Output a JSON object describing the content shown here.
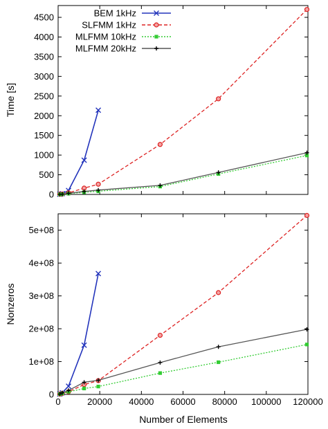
{
  "figure": {
    "xlabel": "Number of Elements"
  },
  "chart_data": [
    {
      "type": "line",
      "title": "",
      "xlabel": "",
      "ylabel": "Time [s]",
      "xlim": [
        0,
        120000
      ],
      "ylim": [
        0,
        4800
      ],
      "xticks": [
        0,
        20000,
        40000,
        60000,
        80000,
        100000,
        120000
      ],
      "yticks": [
        0,
        500,
        1000,
        1500,
        2000,
        2500,
        3000,
        3500,
        4000,
        4500
      ],
      "ytick_labels": [
        "0",
        "500",
        "1000",
        "1500",
        "2000",
        "2500",
        "3000",
        "3500",
        "4000",
        "4500"
      ],
      "grid": false,
      "legend": {
        "placement": "top-left",
        "entries": [
          "BEM 1kHz",
          "SLFMM 1kHz",
          "MLFMM 10kHz",
          "MLFMM 20kHz"
        ]
      },
      "series": [
        {
          "name": "BEM 1kHz",
          "color": "#2233bb",
          "marker": "x",
          "dash": "solid",
          "x": [
            800,
            2000,
            5000,
            12500,
            19300
          ],
          "y": [
            5,
            20,
            100,
            870,
            2140
          ]
        },
        {
          "name": "SLFMM 1kHz",
          "color": "#dd2222",
          "marker": "circle",
          "dash": "dashed",
          "x": [
            800,
            2000,
            5000,
            12500,
            19300,
            49000,
            77000,
            119500
          ],
          "y": [
            5,
            10,
            40,
            160,
            260,
            1270,
            2430,
            4700
          ]
        },
        {
          "name": "MLFMM 10kHz",
          "color": "#33cc33",
          "marker": "square",
          "dash": "dotted",
          "x": [
            800,
            2000,
            5000,
            12500,
            19300,
            49000,
            77000,
            119500
          ],
          "y": [
            2,
            5,
            20,
            55,
            80,
            200,
            520,
            990
          ]
        },
        {
          "name": "MLFMM 20kHz",
          "color": "#555555",
          "marker": "plus",
          "dash": "solid",
          "x": [
            800,
            2000,
            5000,
            12500,
            19300,
            49000,
            77000,
            119500
          ],
          "y": [
            3,
            8,
            30,
            75,
            110,
            230,
            560,
            1060
          ]
        }
      ]
    },
    {
      "type": "line",
      "title": "",
      "xlabel": "Number of Elements",
      "ylabel": "Nonzeros",
      "xlim": [
        0,
        120000
      ],
      "ylim": [
        0,
        550000000
      ],
      "xticks": [
        0,
        20000,
        40000,
        60000,
        80000,
        100000,
        120000
      ],
      "xtick_labels": [
        "0",
        "20000",
        "40000",
        "60000",
        "80000",
        "100000",
        "120000"
      ],
      "yticks": [
        0,
        100000000,
        200000000,
        300000000,
        400000000,
        500000000
      ],
      "ytick_labels": [
        "0",
        "1e+08",
        "2e+08",
        "3e+08",
        "4e+08",
        "5e+08"
      ],
      "grid": false,
      "series": [
        {
          "name": "BEM 1kHz",
          "color": "#2233bb",
          "marker": "x",
          "dash": "solid",
          "x": [
            800,
            2000,
            5000,
            12500,
            19300
          ],
          "y": [
            1000000,
            5000000,
            25000000,
            150000000,
            368000000
          ]
        },
        {
          "name": "SLFMM 1kHz",
          "color": "#dd2222",
          "marker": "circle",
          "dash": "dashed",
          "x": [
            800,
            2000,
            5000,
            12500,
            19300,
            49000,
            77000,
            119500
          ],
          "y": [
            1000000,
            3000000,
            8000000,
            30000000,
            42000000,
            180000000,
            310000000,
            545000000
          ]
        },
        {
          "name": "MLFMM 10kHz",
          "color": "#33cc33",
          "marker": "square",
          "dash": "dotted",
          "x": [
            800,
            2000,
            5000,
            12500,
            19300,
            49000,
            77000,
            119500
          ],
          "y": [
            1000000,
            3000000,
            8000000,
            18000000,
            24000000,
            65000000,
            98000000,
            152000000
          ]
        },
        {
          "name": "MLFMM 20kHz",
          "color": "#555555",
          "marker": "plus",
          "dash": "solid",
          "x": [
            800,
            2000,
            5000,
            12500,
            19300,
            49000,
            77000,
            119500
          ],
          "y": [
            1000000,
            5000000,
            12000000,
            37000000,
            43000000,
            97000000,
            145000000,
            198000000
          ]
        }
      ]
    }
  ]
}
